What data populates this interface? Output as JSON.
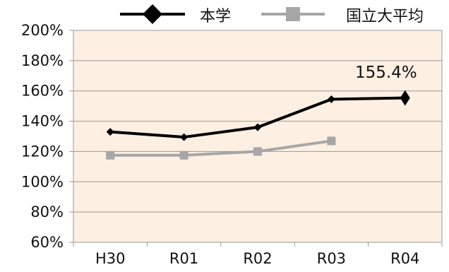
{
  "chart_data": {
    "type": "line",
    "categories": [
      "H30",
      "R01",
      "R02",
      "R03",
      "R04"
    ],
    "series": [
      {
        "name": "本学",
        "values": [
          133,
          129.5,
          136,
          154.5,
          155.4
        ],
        "color": "#000000",
        "marker": "diamond"
      },
      {
        "name": "国立大平均",
        "values": [
          117.5,
          117.5,
          120,
          127,
          null
        ],
        "color": "#a6a6a6",
        "marker": "square"
      }
    ],
    "ylim": [
      60,
      200
    ],
    "ytick_labels": [
      "60%",
      "80%",
      "100%",
      "120%",
      "140%",
      "160%",
      "180%",
      "200%"
    ],
    "grid": true,
    "legend_position": "top",
    "annotations": [
      {
        "text": "155.4%"
      }
    ],
    "plot_background": "#fdefe2"
  }
}
